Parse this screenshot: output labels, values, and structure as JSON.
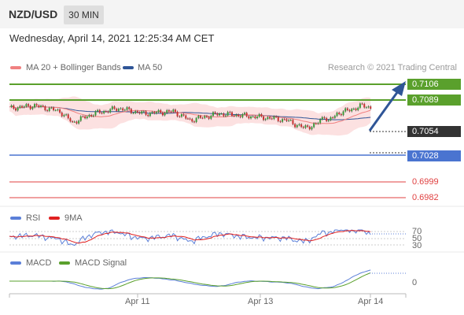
{
  "header": {
    "pair": "NZD/USD",
    "timeframe": "30 MIN"
  },
  "datetime": "Wednesday, April 14, 2021 12:25:34 AM CET",
  "legend": {
    "ma20_label": "MA 20 + Bollinger Bands",
    "ma50_label": "MA 50",
    "copyright": "Research © 2021 Trading Central"
  },
  "levels": [
    {
      "value": "0.7106",
      "color": "#5aa02c"
    },
    {
      "value": "0.7089",
      "color": "#5aa02c"
    },
    {
      "value": "0.7054",
      "color": "#333333"
    },
    {
      "value": "0.7028",
      "color": "#4a74d0"
    },
    {
      "value": "0.6999",
      "color": "#e04040"
    },
    {
      "value": "0.6982",
      "color": "#e04040"
    }
  ],
  "rsi": {
    "label": "RSI",
    "ma_label": "9MA",
    "scale": [
      "70",
      "50",
      "30"
    ]
  },
  "macd": {
    "label": "MACD",
    "signal_label": "MACD Signal",
    "scale": "0"
  },
  "x_axis": [
    "Apr 11",
    "Apr 13",
    "Apr 14"
  ],
  "colors": {
    "up": "#3a9a3a",
    "down": "#c83232",
    "ma20": "#f08080",
    "ma50": "#2f5597",
    "support": "#4a74d0",
    "resistance": "#5aa02c",
    "target": "#e04040"
  }
}
